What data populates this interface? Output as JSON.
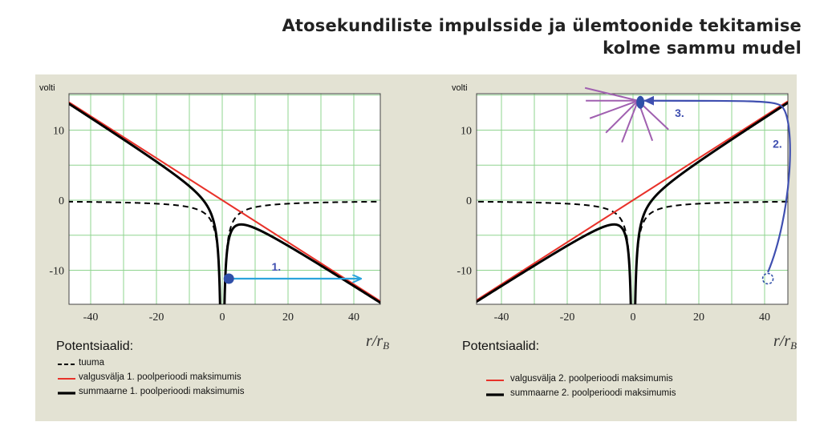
{
  "title": {
    "line1": "Atosekundiliste impulsside ja ülemtoonide tekitamise",
    "line2": "kolme sammu mudel"
  },
  "colors": {
    "panel": "#e3e2d3",
    "grid": "#8fd48f",
    "laser": "#e8322a",
    "total": "#000000",
    "arrow_cyan": "#2ba3dd",
    "arrow_blue": "#3f4fb0",
    "electron": "#2f4fa8",
    "rays": "#a060b0"
  },
  "chart_data": [
    {
      "type": "line",
      "ylabel": "volti",
      "xlabel": "r/r_B",
      "xlim": [
        -50,
        50
      ],
      "ylim": [
        -15,
        15
      ],
      "xticks": [
        "-40",
        "-20",
        "0",
        "20",
        "40"
      ],
      "yticks": [
        "10",
        "0",
        "-10"
      ],
      "grid": true,
      "legend_title": "Potentsiaalid:",
      "legend": [
        "tuuma",
        "valgusvälja 1. poolperioodi maksimumis",
        "summaarne 1. poolperioodi maksimumis"
      ],
      "series": [
        {
          "name": "tuuma",
          "style": "dashed",
          "formula": "-10/|x|"
        },
        {
          "name": "valgusvälja 1. poolperioodi maksimumis",
          "style": "red",
          "slope": -0.3
        },
        {
          "name": "summaarne 1. poolperioodi maksimumis",
          "style": "black",
          "formula": "-0.3x - 10/|x|"
        }
      ],
      "annotations": [
        {
          "label": "1.",
          "type": "arrow",
          "x_from": 2,
          "x_to": 42,
          "y": -11.2
        }
      ]
    },
    {
      "type": "line",
      "ylabel": "volti",
      "xlabel": "r/r_B",
      "xlim": [
        -50,
        50
      ],
      "ylim": [
        -15,
        15
      ],
      "xticks": [
        "-40",
        "-20",
        "0",
        "20",
        "40"
      ],
      "yticks": [
        "10",
        "0",
        "-10"
      ],
      "grid": true,
      "legend_title": "Potentsiaalid:",
      "legend": [
        "valgusvälja 2. poolperioodi maksimumis",
        "summaarne 2. poolperioodi maksimumis"
      ],
      "series": [
        {
          "name": "tuuma",
          "style": "dashed",
          "formula": "-10/|x|"
        },
        {
          "name": "valgusvälja 2. poolperioodi maksimumis",
          "style": "red",
          "slope": 0.3
        },
        {
          "name": "summaarne 2. poolperioodi maksimumis",
          "style": "black",
          "formula": "0.3x - 10/|x|"
        }
      ],
      "annotations": [
        {
          "label": "2.",
          "type": "curved-arrow",
          "x_from": 41,
          "y_from": -11.2,
          "x_to": 1.5,
          "y_to": 14.2
        },
        {
          "label": "3.",
          "type": "emission",
          "x": 1.5,
          "y": 14.2
        }
      ]
    }
  ]
}
